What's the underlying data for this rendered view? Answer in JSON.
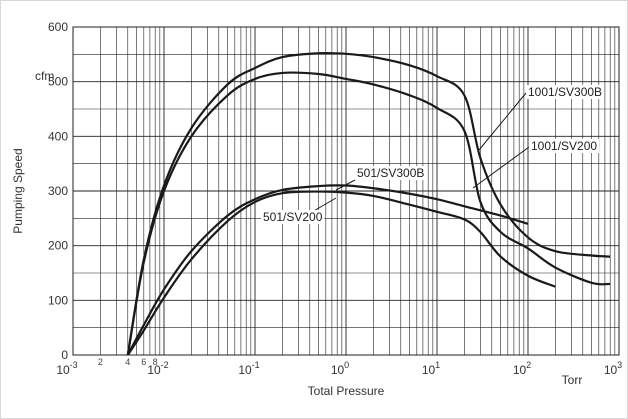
{
  "chart_data": {
    "type": "line",
    "title": "",
    "xlabel": "Total Pressure",
    "ylabel": "Pumping Speed",
    "x_unit": "Torr",
    "y_unit": "cfm",
    "x_scale": "log",
    "xlim": [
      0.001,
      1000
    ],
    "ylim": [
      0,
      600
    ],
    "grid": true,
    "legend": "none (curves labeled directly with leader lines)",
    "x_ticks": [
      {
        "base": "10",
        "exp": "-3"
      },
      {
        "base": "10",
        "exp": "-2"
      },
      {
        "base": "10",
        "exp": "-1"
      },
      {
        "base": "10",
        "exp": "0"
      },
      {
        "base": "10",
        "exp": "1"
      },
      {
        "base": "10",
        "exp": "2"
      },
      {
        "base": "10",
        "exp": "3"
      }
    ],
    "x_minor_labels": [
      "2",
      "4",
      "6",
      "8"
    ],
    "y_ticks": [
      "0",
      "100",
      "200",
      "300",
      "400",
      "500",
      "600"
    ],
    "series": [
      {
        "name": "1001/SV300B",
        "x": [
          0.004,
          0.006,
          0.01,
          0.02,
          0.05,
          0.1,
          0.2,
          0.5,
          1,
          2,
          5,
          10,
          20,
          30,
          50,
          100,
          200,
          500,
          800
        ],
        "values": [
          0,
          175,
          310,
          415,
          495,
          525,
          545,
          552,
          551,
          545,
          530,
          510,
          475,
          360,
          275,
          215,
          190,
          182,
          180
        ]
      },
      {
        "name": "1001/SV200",
        "x": [
          0.004,
          0.006,
          0.01,
          0.02,
          0.05,
          0.1,
          0.2,
          0.5,
          1,
          2,
          5,
          10,
          20,
          30,
          50,
          100,
          200,
          500,
          800
        ],
        "values": [
          0,
          170,
          300,
          400,
          475,
          505,
          516,
          514,
          505,
          495,
          475,
          452,
          410,
          280,
          225,
          195,
          160,
          132,
          130
        ]
      },
      {
        "name": "501/SV300B",
        "x": [
          0.004,
          0.006,
          0.01,
          0.02,
          0.05,
          0.1,
          0.2,
          0.5,
          1,
          2,
          5,
          10,
          20,
          50,
          100
        ],
        "values": [
          0,
          55,
          120,
          190,
          255,
          285,
          302,
          309,
          310,
          305,
          295,
          285,
          272,
          255,
          240
        ]
      },
      {
        "name": "501/SV200",
        "x": [
          0.004,
          0.006,
          0.01,
          0.02,
          0.05,
          0.1,
          0.2,
          0.5,
          1,
          2,
          5,
          10,
          20,
          30,
          50,
          100,
          200
        ],
        "values": [
          0,
          45,
          105,
          175,
          245,
          280,
          296,
          299,
          297,
          291,
          275,
          262,
          248,
          225,
          180,
          145,
          125
        ]
      }
    ]
  },
  "style": {
    "line_color": "#1a1a1a",
    "grid_color": "#222222",
    "frame_color": "#d8d8d8"
  }
}
